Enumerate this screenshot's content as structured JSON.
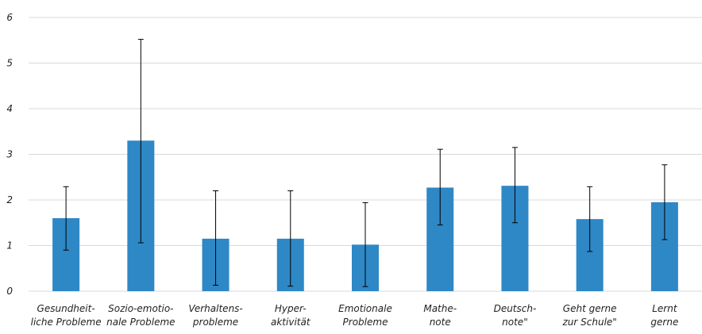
{
  "chart_data": {
    "type": "bar",
    "categories": [
      [
        "Gesundheit-",
        "liche Probleme"
      ],
      [
        "Sozio-emotio-",
        "nale Probleme"
      ],
      [
        "Verhaltens-",
        "probleme"
      ],
      [
        "Hyper-",
        "aktivität"
      ],
      [
        "Emotionale",
        "Probleme"
      ],
      [
        "Mathe-",
        "note"
      ],
      [
        "Deutsch-",
        "note\""
      ],
      [
        "Geht gerne",
        "zur Schule\""
      ],
      [
        "Lernt",
        "gerne"
      ]
    ],
    "values": [
      1.6,
      3.3,
      1.15,
      1.15,
      1.02,
      2.27,
      2.31,
      1.58,
      1.95
    ],
    "error_low": [
      0.9,
      1.06,
      0.13,
      0.11,
      0.1,
      1.45,
      1.5,
      0.87,
      1.13
    ],
    "error_high": [
      2.29,
      5.52,
      2.2,
      2.2,
      1.94,
      3.11,
      3.15,
      2.29,
      2.77
    ],
    "ylim": [
      0,
      6
    ],
    "yticks": [
      0,
      1,
      2,
      3,
      4,
      5,
      6
    ],
    "grid": true,
    "colors": {
      "bar": "#2E88C6",
      "grid": "#D9D9D9",
      "error": "#000000"
    }
  }
}
